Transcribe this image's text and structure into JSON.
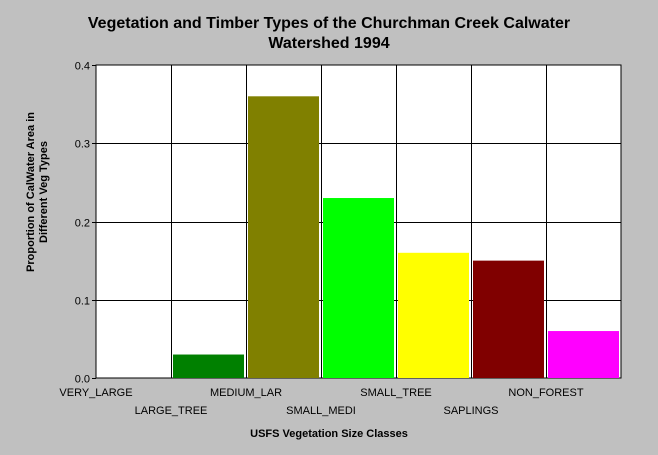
{
  "chart_data": {
    "type": "bar",
    "title_lines": [
      "Vegetation and Timber Types of the Churchman Creek Calwater",
      "Watershed 1994"
    ],
    "xlabel": "USFS Vegetation Size Classes",
    "ylabel_lines": [
      "Proportion of CalWater Area in",
      "Different Veg Types"
    ],
    "categories": [
      "VERY_LARGE",
      "LARGE_TREE",
      "MEDIUM_LAR",
      "SMALL_MEDI",
      "SMALL_TREE",
      "SAPLINGS",
      "NON_FOREST"
    ],
    "values": [
      0.0,
      0.03,
      0.36,
      0.23,
      0.16,
      0.15,
      0.06
    ],
    "colors": [
      "#ffffff",
      "#008000",
      "#808000",
      "#00ff00",
      "#ffff00",
      "#800000",
      "#ff00ff"
    ],
    "ylim": [
      0,
      0.4
    ],
    "yticks": [
      "0.0",
      "0.1",
      "0.2",
      "0.3",
      "0.4"
    ],
    "grid": true,
    "plot_background": "#ffffff"
  }
}
